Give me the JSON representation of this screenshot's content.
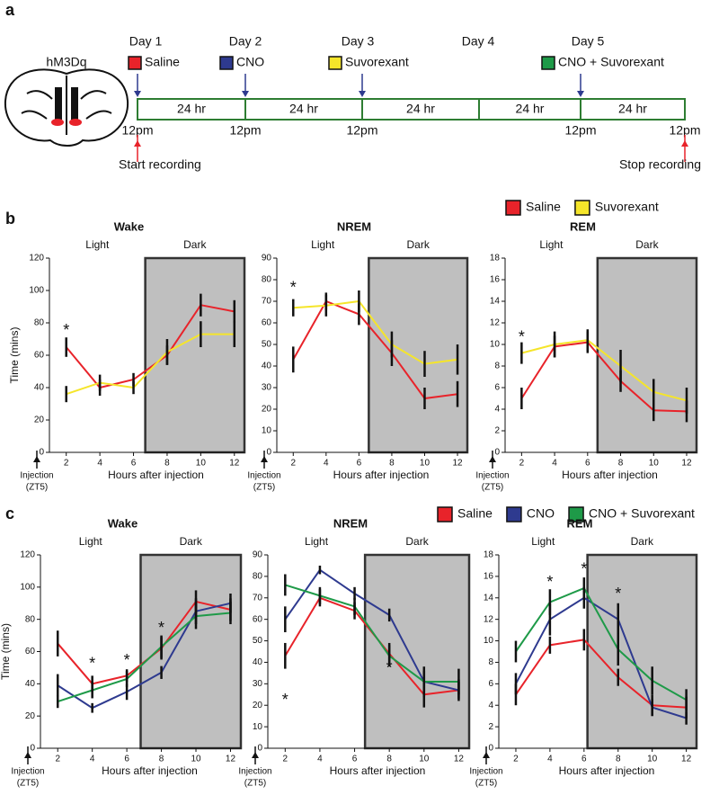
{
  "panel_labels": [
    "a",
    "b",
    "c"
  ],
  "timeline": {
    "construct": "hM3Dq",
    "days": [
      "Day 1",
      "Day 2",
      "Day 3",
      "Day 4",
      "Day 5"
    ],
    "treatments": [
      {
        "label": "Saline",
        "color": "#e8232a"
      },
      {
        "label": "CNO",
        "color": "#2e3a8f"
      },
      {
        "label": "Suvorexant",
        "color": "#f5e52a"
      },
      {
        "label": "CNO + Suvorexant",
        "color": "#1e9a48"
      }
    ],
    "segments": [
      "24 hr",
      "24 hr",
      "24 hr",
      "24 hr",
      "24 hr"
    ],
    "times": [
      "12pm",
      "12pm",
      "12pm",
      "12pm",
      "12pm"
    ],
    "start": "Start recording",
    "stop": "Stop recording"
  },
  "chart_data": [
    {
      "type": "line",
      "title": "Wake",
      "ylabel": "Time (mins)",
      "xlabel": "Hours after injection",
      "injection_label": [
        "Injection",
        "(ZT5)"
      ],
      "regions": [
        {
          "label": "Light",
          "xlim": [
            1,
            6.7
          ]
        },
        {
          "label": "Dark",
          "xlim": [
            6.7,
            12.6
          ],
          "color": "#bfbfbf"
        }
      ],
      "x": [
        2,
        4,
        6,
        8,
        10,
        12
      ],
      "xlim": [
        1,
        12.6
      ],
      "xticks": [
        2,
        4,
        6,
        8,
        10,
        12
      ],
      "ylim": [
        0,
        120
      ],
      "yticks": [
        0,
        20,
        40,
        60,
        80,
        100,
        120
      ],
      "legend": "above",
      "series": [
        {
          "name": "Saline",
          "color": "#e8232a",
          "values": [
            65,
            40,
            45,
            60,
            91,
            87
          ],
          "errors": [
            6,
            5,
            4,
            6,
            7,
            7
          ]
        },
        {
          "name": "Suvorexant",
          "color": "#f5e52a",
          "values": [
            36,
            43,
            40,
            62,
            73,
            73
          ],
          "errors": [
            5,
            5,
            4,
            8,
            8,
            8
          ]
        }
      ],
      "annotations": [
        {
          "text": "*",
          "x": 2,
          "y": 75
        }
      ]
    },
    {
      "type": "line",
      "title": "NREM",
      "xlabel": "Hours after injection",
      "injection_label": [
        "Injection",
        "(ZT5)"
      ],
      "regions": [
        {
          "label": "Light",
          "xlim": [
            1,
            6.6
          ]
        },
        {
          "label": "Dark",
          "xlim": [
            6.6,
            12.6
          ],
          "color": "#bfbfbf"
        }
      ],
      "x": [
        2,
        4,
        6,
        8,
        10,
        12
      ],
      "xlim": [
        1,
        12.6
      ],
      "xticks": [
        2,
        4,
        6,
        8,
        10,
        12
      ],
      "ylim": [
        0,
        90
      ],
      "yticks": [
        0,
        10,
        20,
        30,
        40,
        50,
        60,
        70,
        80,
        90
      ],
      "series": [
        {
          "name": "Saline",
          "color": "#e8232a",
          "values": [
            43,
            70,
            64,
            46,
            25,
            27
          ],
          "errors": [
            6,
            4,
            5,
            6,
            5,
            6
          ]
        },
        {
          "name": "Suvorexant",
          "color": "#f5e52a",
          "values": [
            67,
            68,
            70,
            50,
            41,
            43
          ],
          "errors": [
            4,
            5,
            5,
            6,
            6,
            7
          ]
        }
      ],
      "annotations": [
        {
          "text": "*",
          "x": 2,
          "y": 76
        }
      ]
    },
    {
      "type": "line",
      "title": "REM",
      "xlabel": "Hours after injection",
      "injection_label": [
        "Injection",
        "(ZT5)"
      ],
      "regions": [
        {
          "label": "Light",
          "xlim": [
            1,
            6.6
          ]
        },
        {
          "label": "Dark",
          "xlim": [
            6.6,
            12.6
          ],
          "color": "#bfbfbf"
        }
      ],
      "x": [
        2,
        4,
        6,
        8,
        10,
        12
      ],
      "xlim": [
        1,
        12.6
      ],
      "xticks": [
        2,
        4,
        6,
        8,
        10,
        12
      ],
      "ylim": [
        0,
        18
      ],
      "yticks": [
        0,
        2,
        4,
        6,
        8,
        10,
        12,
        14,
        16,
        18
      ],
      "series": [
        {
          "name": "Saline",
          "color": "#e8232a",
          "values": [
            5,
            9.8,
            10.2,
            6.6,
            3.9,
            3.8
          ],
          "errors": [
            1,
            1,
            1,
            1,
            1,
            1
          ]
        },
        {
          "name": "Suvorexant",
          "color": "#f5e52a",
          "values": [
            9.2,
            10,
            10.4,
            8,
            5.6,
            4.8
          ],
          "errors": [
            1,
            1.2,
            1,
            1.5,
            1.2,
            1.2
          ]
        }
      ],
      "annotations": [
        {
          "text": "*",
          "x": 2,
          "y": 10.6
        }
      ]
    },
    {
      "type": "line",
      "title": "Wake",
      "ylabel": "Time (mins)",
      "xlabel": "Hours after injection",
      "injection_label": [
        "Injection",
        "(ZT5)"
      ],
      "regions": [
        {
          "label": "Light",
          "xlim": [
            1,
            6.8
          ]
        },
        {
          "label": "Dark",
          "xlim": [
            6.8,
            12.6
          ],
          "color": "#bfbfbf"
        }
      ],
      "x": [
        2,
        4,
        6,
        8,
        10,
        12
      ],
      "xlim": [
        1,
        12.6
      ],
      "xticks": [
        2,
        4,
        6,
        8,
        10,
        12
      ],
      "ylim": [
        0,
        120
      ],
      "yticks": [
        0,
        20,
        40,
        60,
        80,
        100,
        120
      ],
      "legend": "above",
      "series": [
        {
          "name": "Saline",
          "color": "#e8232a",
          "values": [
            65,
            40,
            45,
            62,
            91,
            86
          ],
          "errors": [
            8,
            5,
            4,
            7,
            7,
            7
          ]
        },
        {
          "name": "CNO",
          "color": "#2e3a8f",
          "values": [
            39,
            25,
            35,
            47,
            85,
            90
          ],
          "errors": [
            7,
            3,
            5,
            4,
            8,
            6
          ]
        },
        {
          "name": "CNO + Suvorexant",
          "color": "#1e9a48",
          "values": [
            29,
            36,
            43,
            63,
            82,
            84
          ],
          "errors": [
            4,
            5,
            5,
            7,
            8,
            7
          ]
        }
      ],
      "annotations": [
        {
          "text": "*",
          "x": 4,
          "y": 52
        },
        {
          "text": "*",
          "x": 6,
          "y": 54
        },
        {
          "text": "*",
          "x": 8,
          "y": 74
        }
      ]
    },
    {
      "type": "line",
      "title": "NREM",
      "xlabel": "Hours after injection",
      "injection_label": [
        "Injection",
        "(ZT5)"
      ],
      "regions": [
        {
          "label": "Light",
          "xlim": [
            1,
            6.6
          ]
        },
        {
          "label": "Dark",
          "xlim": [
            6.6,
            12.6
          ],
          "color": "#bfbfbf"
        }
      ],
      "x": [
        2,
        4,
        6,
        8,
        10,
        12
      ],
      "xlim": [
        1,
        12.6
      ],
      "xticks": [
        2,
        4,
        6,
        8,
        10,
        12
      ],
      "ylim": [
        0,
        90
      ],
      "yticks": [
        0,
        10,
        20,
        30,
        40,
        50,
        60,
        70,
        80,
        90
      ],
      "series": [
        {
          "name": "Saline",
          "color": "#e8232a",
          "values": [
            43,
            70,
            64,
            44,
            25,
            27
          ],
          "errors": [
            6,
            4,
            4,
            5,
            6,
            5
          ]
        },
        {
          "name": "CNO",
          "color": "#2e3a8f",
          "values": [
            60,
            83,
            72,
            62,
            31,
            27
          ],
          "errors": [
            6,
            2,
            3,
            3,
            7,
            4
          ]
        },
        {
          "name": "CNO + Suvorexant",
          "color": "#1e9a48",
          "values": [
            76,
            71,
            66,
            43,
            31,
            31
          ],
          "errors": [
            5,
            4,
            4,
            5,
            5,
            6
          ]
        }
      ],
      "annotations": [
        {
          "text": "*",
          "x": 2,
          "y": 22
        },
        {
          "text": "*",
          "x": 8,
          "y": 37
        }
      ]
    },
    {
      "type": "line",
      "title": "REM",
      "xlabel": "Hours after injection",
      "injection_label": [
        "Injection",
        "(ZT5)"
      ],
      "regions": [
        {
          "label": "Light",
          "xlim": [
            1,
            6.2
          ]
        },
        {
          "label": "Dark",
          "xlim": [
            6.2,
            12.6
          ],
          "color": "#bfbfbf"
        }
      ],
      "x": [
        2,
        4,
        6,
        8,
        10,
        12
      ],
      "xlim": [
        1,
        12.6
      ],
      "xticks": [
        2,
        4,
        6,
        8,
        10,
        12
      ],
      "ylim": [
        0,
        18
      ],
      "yticks": [
        0,
        2,
        4,
        6,
        8,
        10,
        12,
        14,
        16,
        18
      ],
      "series": [
        {
          "name": "Saline",
          "color": "#e8232a",
          "values": [
            5,
            9.6,
            10.1,
            6.6,
            4,
            3.8
          ],
          "errors": [
            1,
            0.8,
            1,
            0.8,
            1,
            1
          ]
        },
        {
          "name": "CNO",
          "color": "#2e3a8f",
          "values": [
            6,
            12,
            14,
            12,
            3.8,
            2.8
          ],
          "errors": [
            1,
            1.5,
            1,
            1.5,
            0.8,
            0.6
          ]
        },
        {
          "name": "CNO + Suvorexant",
          "color": "#1e9a48",
          "values": [
            9,
            13.6,
            14.9,
            9.2,
            6.3,
            4.5
          ],
          "errors": [
            1,
            1.2,
            1,
            1.5,
            1.3,
            1
          ]
        }
      ],
      "annotations": [
        {
          "text": "*",
          "x": 4,
          "y": 15.4
        },
        {
          "text": "*",
          "x": 6,
          "y": 16.6
        },
        {
          "text": "*",
          "x": 8,
          "y": 14.3
        }
      ]
    }
  ]
}
